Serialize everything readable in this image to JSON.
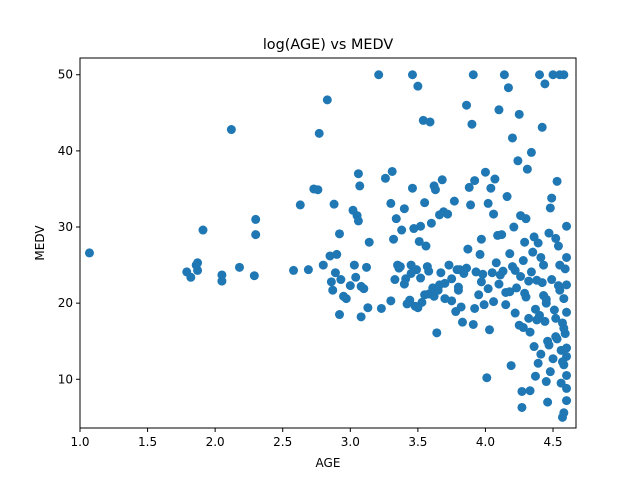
{
  "chart_data": {
    "type": "scatter",
    "title": "log(AGE) vs MEDV",
    "xlabel": "AGE",
    "ylabel": "MEDV",
    "xlim": [
      1.0,
      4.67
    ],
    "ylim": [
      3.6,
      52.2
    ],
    "xticks": [
      "1.0",
      "1.5",
      "2.0",
      "2.5",
      "3.0",
      "3.5",
      "4.0",
      "4.5"
    ],
    "yticks": [
      "10",
      "20",
      "30",
      "40",
      "50"
    ],
    "grid": false,
    "marker_color": "#1f77b4",
    "series": [
      {
        "points": [
          [
            1.07,
            26.6
          ],
          [
            1.79,
            24.1
          ],
          [
            1.82,
            23.4
          ],
          [
            1.86,
            25.0
          ],
          [
            1.87,
            25.3
          ],
          [
            1.87,
            24.3
          ],
          [
            1.91,
            29.6
          ],
          [
            2.05,
            23.7
          ],
          [
            2.05,
            22.9
          ],
          [
            2.12,
            42.8
          ],
          [
            2.18,
            24.7
          ],
          [
            2.29,
            23.6
          ],
          [
            2.3,
            31.0
          ],
          [
            2.3,
            29.0
          ],
          [
            2.58,
            24.3
          ],
          [
            2.63,
            32.9
          ],
          [
            2.69,
            24.4
          ],
          [
            2.73,
            35.0
          ],
          [
            2.76,
            34.9
          ],
          [
            2.77,
            42.3
          ],
          [
            2.8,
            25.0
          ],
          [
            2.83,
            46.7
          ],
          [
            2.85,
            26.2
          ],
          [
            2.86,
            22.8
          ],
          [
            2.87,
            21.7
          ],
          [
            2.88,
            33.0
          ],
          [
            2.89,
            24.0
          ],
          [
            2.9,
            26.4
          ],
          [
            2.92,
            29.1
          ],
          [
            2.92,
            18.5
          ],
          [
            2.93,
            23.1
          ],
          [
            2.95,
            20.9
          ],
          [
            2.97,
            20.6
          ],
          [
            3.0,
            22.3
          ],
          [
            3.02,
            32.2
          ],
          [
            3.03,
            25.0
          ],
          [
            3.04,
            23.4
          ],
          [
            3.05,
            31.5
          ],
          [
            3.06,
            30.8
          ],
          [
            3.06,
            37.0
          ],
          [
            3.07,
            35.4
          ],
          [
            3.08,
            22.2
          ],
          [
            3.08,
            18.2
          ],
          [
            3.1,
            21.9
          ],
          [
            3.12,
            24.7
          ],
          [
            3.13,
            19.4
          ],
          [
            3.14,
            28.0
          ],
          [
            3.21,
            50.0
          ],
          [
            3.23,
            19.3
          ],
          [
            3.26,
            36.4
          ],
          [
            3.3,
            33.1
          ],
          [
            3.31,
            37.3
          ],
          [
            3.32,
            28.4
          ],
          [
            3.33,
            23.1
          ],
          [
            3.34,
            31.1
          ],
          [
            3.35,
            25.0
          ],
          [
            3.37,
            24.8
          ],
          [
            3.38,
            29.6
          ],
          [
            3.4,
            32.4
          ],
          [
            3.41,
            23.2
          ],
          [
            3.42,
            19.9
          ],
          [
            3.44,
            20.4
          ],
          [
            3.45,
            25.0
          ],
          [
            3.46,
            50.0
          ],
          [
            3.46,
            35.1
          ],
          [
            3.47,
            29.8
          ],
          [
            3.48,
            19.6
          ],
          [
            3.49,
            24.4
          ],
          [
            3.5,
            48.5
          ],
          [
            3.51,
            28.1
          ],
          [
            3.52,
            30.1
          ],
          [
            3.52,
            23.3
          ],
          [
            3.53,
            20.1
          ],
          [
            3.54,
            44.0
          ],
          [
            3.55,
            33.2
          ],
          [
            3.56,
            27.5
          ],
          [
            3.57,
            24.8
          ],
          [
            3.58,
            21.2
          ],
          [
            3.59,
            43.8
          ],
          [
            3.6,
            30.5
          ],
          [
            3.61,
            22.0
          ],
          [
            3.62,
            35.4
          ],
          [
            3.63,
            34.9
          ],
          [
            3.64,
            16.1
          ],
          [
            3.65,
            21.7
          ],
          [
            3.66,
            31.6
          ],
          [
            3.67,
            24.0
          ],
          [
            3.68,
            36.2
          ],
          [
            3.69,
            32.0
          ],
          [
            3.7,
            22.6
          ],
          [
            3.72,
            31.7
          ],
          [
            3.73,
            25.0
          ],
          [
            3.75,
            20.3
          ],
          [
            3.77,
            33.4
          ],
          [
            3.78,
            18.9
          ],
          [
            3.79,
            24.4
          ],
          [
            3.8,
            22.1
          ],
          [
            3.81,
            24.4
          ],
          [
            3.82,
            19.5
          ],
          [
            3.83,
            17.5
          ],
          [
            3.84,
            23.9
          ],
          [
            3.86,
            46.0
          ],
          [
            3.87,
            27.1
          ],
          [
            3.88,
            35.2
          ],
          [
            3.89,
            32.9
          ],
          [
            3.9,
            43.5
          ],
          [
            3.91,
            17.2
          ],
          [
            3.91,
            50.0
          ],
          [
            3.92,
            36.1
          ],
          [
            3.93,
            24.1
          ],
          [
            3.95,
            21.1
          ],
          [
            3.96,
            26.4
          ],
          [
            3.97,
            28.4
          ],
          [
            3.98,
            23.8
          ],
          [
            3.99,
            19.8
          ],
          [
            4.0,
            37.2
          ],
          [
            4.01,
            10.2
          ],
          [
            4.02,
            33.1
          ],
          [
            4.03,
            16.5
          ],
          [
            4.04,
            35.1
          ],
          [
            4.05,
            24.0
          ],
          [
            4.06,
            31.7
          ],
          [
            4.07,
            36.3
          ],
          [
            4.08,
            25.3
          ],
          [
            4.09,
            28.9
          ],
          [
            4.1,
            45.4
          ],
          [
            4.11,
            23.7
          ],
          [
            4.12,
            29.0
          ],
          [
            4.13,
            24.2
          ],
          [
            4.14,
            50.0
          ],
          [
            4.15,
            21.4
          ],
          [
            4.16,
            34.0
          ],
          [
            4.17,
            48.3
          ],
          [
            4.18,
            26.5
          ],
          [
            4.19,
            11.8
          ],
          [
            4.2,
            41.7
          ],
          [
            4.21,
            30.0
          ],
          [
            4.22,
            24.3
          ],
          [
            4.23,
            22.0
          ],
          [
            4.24,
            38.7
          ],
          [
            4.25,
            44.8
          ],
          [
            4.26,
            31.5
          ],
          [
            4.27,
            6.3
          ],
          [
            4.27,
            8.4
          ],
          [
            4.28,
            16.8
          ],
          [
            4.29,
            28.0
          ],
          [
            4.3,
            31.1
          ],
          [
            4.31,
            37.6
          ],
          [
            4.32,
            22.9
          ],
          [
            4.33,
            8.5
          ],
          [
            4.34,
            39.8
          ],
          [
            4.35,
            26.7
          ],
          [
            4.36,
            28.7
          ],
          [
            4.37,
            10.4
          ],
          [
            4.38,
            17.8
          ],
          [
            4.39,
            27.9
          ],
          [
            4.4,
            50.0
          ],
          [
            4.41,
            13.3
          ],
          [
            4.42,
            43.1
          ],
          [
            4.43,
            25.0
          ],
          [
            4.44,
            48.8
          ],
          [
            4.45,
            9.7
          ],
          [
            4.45,
            20.0
          ],
          [
            4.46,
            7.0
          ],
          [
            4.47,
            14.5
          ],
          [
            4.48,
            32.5
          ],
          [
            4.49,
            23.1
          ],
          [
            4.5,
            50.0
          ],
          [
            4.5,
            12.7
          ],
          [
            4.51,
            19.1
          ],
          [
            4.52,
            18.0
          ],
          [
            4.53,
            36.0
          ],
          [
            4.53,
            15.3
          ],
          [
            4.54,
            27.5
          ],
          [
            4.55,
            50.0
          ],
          [
            4.55,
            21.7
          ],
          [
            4.56,
            13.8
          ],
          [
            4.57,
            17.4
          ],
          [
            4.57,
            5.0
          ],
          [
            4.58,
            50.0
          ],
          [
            4.58,
            5.6
          ],
          [
            4.58,
            20.6
          ],
          [
            4.58,
            11.9
          ],
          [
            4.59,
            16.0
          ],
          [
            4.59,
            24.5
          ],
          [
            4.6,
            30.1
          ],
          [
            4.6,
            14.1
          ],
          [
            4.6,
            7.2
          ],
          [
            4.6,
            8.8
          ],
          [
            4.6,
            10.5
          ],
          [
            4.6,
            18.8
          ],
          [
            4.6,
            22.4
          ],
          [
            4.6,
            26.0
          ],
          [
            4.6,
            13.0
          ],
          [
            4.55,
            25.0
          ],
          [
            4.52,
            15.6
          ],
          [
            4.48,
            11.0
          ],
          [
            4.43,
            21.0
          ],
          [
            4.4,
            18.4
          ],
          [
            4.38,
            23.0
          ],
          [
            4.33,
            16.2
          ],
          [
            4.3,
            20.8
          ],
          [
            4.25,
            17.1
          ],
          [
            4.2,
            24.8
          ],
          [
            4.18,
            21.5
          ],
          [
            4.15,
            19.8
          ],
          [
            4.1,
            22.5
          ],
          [
            4.06,
            20.2
          ],
          [
            4.02,
            21.9
          ],
          [
            3.97,
            22.8
          ],
          [
            3.92,
            19.3
          ],
          [
            3.86,
            24.6
          ],
          [
            3.8,
            21.7
          ],
          [
            3.75,
            23.2
          ],
          [
            3.7,
            20.6
          ],
          [
            3.66,
            22.4
          ],
          [
            3.62,
            20.9
          ],
          [
            3.58,
            24.2
          ],
          [
            3.55,
            21.1
          ],
          [
            3.5,
            19.4
          ],
          [
            3.45,
            23.9
          ],
          [
            3.4,
            22.5
          ],
          [
            3.36,
            24.6
          ],
          [
            3.3,
            20.3
          ],
          [
            4.45,
            20.5
          ],
          [
            4.42,
            22.7
          ],
          [
            4.37,
            19.2
          ],
          [
            4.34,
            24.1
          ],
          [
            4.29,
            21.3
          ],
          [
            4.26,
            23.5
          ],
          [
            4.22,
            18.7
          ],
          [
            4.58,
            16.7
          ],
          [
            4.57,
            12.3
          ],
          [
            4.56,
            9.5
          ],
          [
            4.54,
            22.3
          ],
          [
            4.52,
            28.5
          ],
          [
            4.49,
            33.8
          ],
          [
            4.47,
            29.2
          ],
          [
            4.46,
            15.0
          ],
          [
            4.44,
            17.6
          ],
          [
            4.41,
            26.0
          ],
          [
            4.39,
            12.1
          ],
          [
            4.36,
            14.3
          ],
          [
            4.32,
            18.0
          ],
          [
            4.28,
            25.6
          ]
        ]
      }
    ]
  }
}
